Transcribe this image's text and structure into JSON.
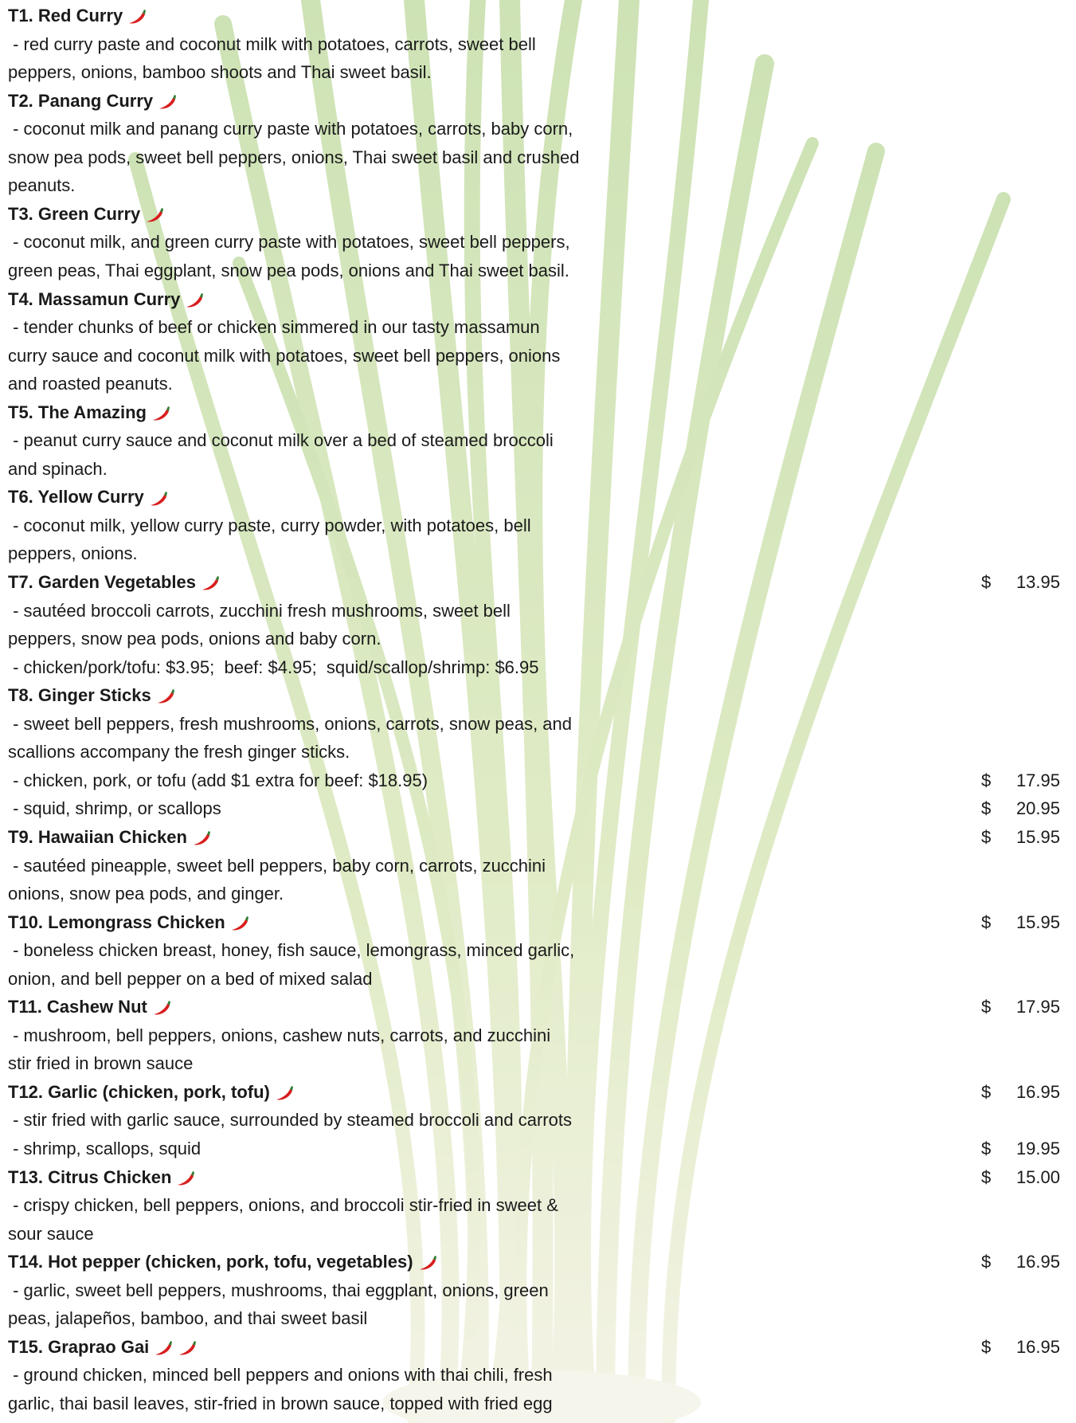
{
  "items": [
    {
      "title": "T1. Red Curry",
      "spicy": 1,
      "lines": [
        {
          "text": " - red curry paste and coconut milk with potatoes, carrots, sweet bell"
        },
        {
          "text": "peppers, onions, bamboo shoots and Thai sweet basil."
        }
      ]
    },
    {
      "title": "T2. Panang Curry",
      "spicy": 1,
      "lines": [
        {
          "text": " - coconut milk and panang curry paste with potatoes, carrots, baby corn,"
        },
        {
          "text": "snow pea pods, sweet bell peppers, onions, Thai sweet basil and crushed"
        },
        {
          "text": "peanuts."
        }
      ]
    },
    {
      "title": "T3. Green Curry",
      "spicy": 1,
      "lines": [
        {
          "text": " - coconut milk, and green curry paste with potatoes, sweet bell peppers,"
        },
        {
          "text": "green peas, Thai eggplant, snow pea pods, onions and Thai sweet basil."
        }
      ]
    },
    {
      "title": "T4. Massamun Curry",
      "spicy": 1,
      "lines": [
        {
          "text": " - tender chunks of beef or chicken simmered in our tasty massamun"
        },
        {
          "text": "curry sauce and coconut milk with potatoes, sweet bell peppers, onions"
        },
        {
          "text": "and roasted peanuts."
        }
      ]
    },
    {
      "title": "T5. The Amazing",
      "spicy": 1,
      "lines": [
        {
          "text": " - peanut curry sauce and coconut milk over a bed of steamed broccoli"
        },
        {
          "text": "and spinach."
        }
      ]
    },
    {
      "title": "T6. Yellow Curry",
      "spicy": 1,
      "lines": [
        {
          "text": " - coconut milk, yellow curry paste, curry powder, with potatoes, bell"
        },
        {
          "text": "peppers, onions."
        }
      ]
    },
    {
      "title": "T7. Garden Vegetables",
      "spicy": 1,
      "price": {
        "currency": "$",
        "amount": "13.95"
      },
      "lines": [
        {
          "text": " - sautéed broccoli carrots, zucchini fresh mushrooms, sweet bell"
        },
        {
          "text": "peppers, snow pea pods, onions and baby corn."
        },
        {
          "text": " - chicken/pork/tofu: $3.95;  beef: $4.95;  squid/scallop/shrimp: $6.95"
        }
      ]
    },
    {
      "title": "T8. Ginger Sticks",
      "spicy": 1,
      "lines": [
        {
          "text": " - sweet bell peppers, fresh mushrooms, onions, carrots, snow peas, and"
        },
        {
          "text": "scallions accompany the fresh ginger sticks."
        },
        {
          "text": " - chicken, pork, or tofu (add $1 extra for beef: $18.95)",
          "price": {
            "currency": "$",
            "amount": "17.95"
          }
        },
        {
          "text": " - squid, shrimp, or scallops",
          "price": {
            "currency": "$",
            "amount": "20.95"
          }
        }
      ]
    },
    {
      "title": "T9. Hawaiian Chicken",
      "spicy": 1,
      "price": {
        "currency": "$",
        "amount": "15.95"
      },
      "lines": [
        {
          "text": " - sautéed pineapple, sweet bell peppers, baby corn, carrots, zucchini"
        },
        {
          "text": "onions, snow pea pods, and ginger."
        }
      ]
    },
    {
      "title": "T10. Lemongrass Chicken",
      "spicy": 1,
      "price": {
        "currency": "$",
        "amount": "15.95"
      },
      "lines": [
        {
          "text": " - boneless chicken breast, honey, fish sauce, lemongrass, minced garlic,"
        },
        {
          "text": "onion, and bell pepper on a bed of mixed salad"
        }
      ]
    },
    {
      "title": "T11. Cashew Nut",
      "spicy": 1,
      "price": {
        "currency": "$",
        "amount": "17.95"
      },
      "lines": [
        {
          "text": " - mushroom, bell peppers, onions, cashew nuts, carrots, and zucchini"
        },
        {
          "text": "stir fried in brown sauce"
        }
      ]
    },
    {
      "title": "T12. Garlic (chicken, pork, tofu)",
      "spicy": 1,
      "price": {
        "currency": "$",
        "amount": "16.95"
      },
      "lines": [
        {
          "text": " - stir fried with garlic sauce, surrounded by steamed broccoli and carrots"
        },
        {
          "text": " - shrimp, scallops, squid",
          "price": {
            "currency": "$",
            "amount": "19.95"
          }
        }
      ]
    },
    {
      "title": "T13. Citrus Chicken",
      "spicy": 1,
      "price": {
        "currency": "$",
        "amount": "15.00"
      },
      "lines": [
        {
          "text": " - crispy chicken, bell peppers, onions, and broccoli stir-fried in sweet &"
        },
        {
          "text": "sour sauce"
        }
      ]
    },
    {
      "title": "T14. Hot pepper (chicken, pork, tofu, vegetables)",
      "spicy": 1,
      "price": {
        "currency": "$",
        "amount": "16.95"
      },
      "lines": [
        {
          "text": " - garlic, sweet bell peppers, mushrooms, thai eggplant, onions, green"
        },
        {
          "text": "peas, jalapeños, bamboo, and thai sweet basil"
        }
      ]
    },
    {
      "title": "T15. Graprao Gai",
      "spicy": 2,
      "price": {
        "currency": "$",
        "amount": "16.95"
      },
      "lines": [
        {
          "text": " - ground chicken, minced bell peppers and onions with thai chili, fresh"
        },
        {
          "text": "garlic, thai basil leaves, stir-fried in brown sauce, topped with fried egg"
        }
      ]
    }
  ]
}
